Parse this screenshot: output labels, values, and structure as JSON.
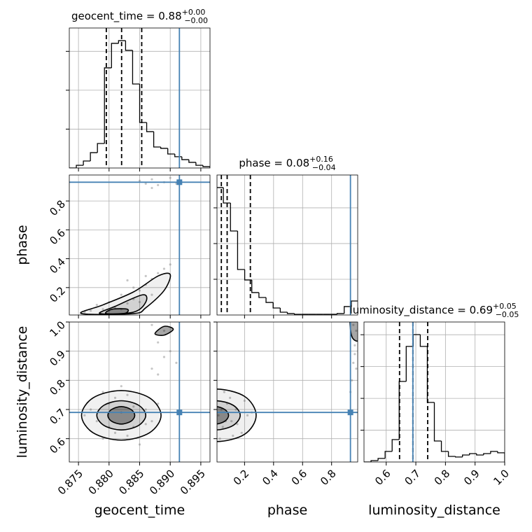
{
  "chart_data": [
    {
      "type": "histogram",
      "title": "geocent_time = 0.88",
      "title_sup": "+0.00",
      "title_sub": "−0.00",
      "color": "#000000",
      "truth_color": "#4682b4",
      "bins": [
        0.8735,
        0.87465,
        0.8758,
        0.87695,
        0.8781,
        0.87925,
        0.8804,
        0.88155,
        0.8827,
        0.88385,
        0.885,
        0.88615,
        0.8873,
        0.88845,
        0.8896,
        0.89075,
        0.8919,
        0.89305,
        0.8942,
        0.89535,
        0.8965
      ],
      "counts": [
        0,
        14,
        36,
        79,
        126,
        515,
        641,
        655,
        605,
        432,
        234,
        187,
        108,
        101,
        72,
        58,
        43,
        29,
        14,
        7
      ],
      "quantiles": [
        0.87955,
        0.88205,
        0.88534
      ],
      "truth": 0.8915,
      "xlim": [
        0.8735,
        0.8965
      ],
      "xticks": [
        0.875,
        {
          "value": 0.88,
          "label": "0.880"
        },
        0.885,
        {
          "value": 0.89,
          "label": "0.890"
        },
        0.895
      ],
      "ylim": [
        0,
        720
      ],
      "yticks": [
        200,
        400,
        600
      ],
      "grid": true
    },
    {
      "type": "scatter",
      "ylabel": "phase",
      "color": "#808080",
      "contour_color": "#000000",
      "truth_color": "#4682b4",
      "x": [
        0.879,
        0.88,
        0.881,
        0.882,
        0.878,
        0.883,
        0.884,
        0.882,
        0.885,
        0.886,
        0.887,
        0.888,
        0.886,
        0.889,
        0.884,
        0.88,
        0.877,
        0.876,
        0.885,
        0.887,
        0.89,
        0.883,
        0.886,
        0.887,
        0.889,
        0.89,
        0.888,
        0.885,
        0.891,
        0.887
      ],
      "y": [
        0.05,
        0.04,
        0.06,
        0.05,
        0.08,
        0.09,
        0.12,
        0.15,
        0.18,
        0.22,
        0.26,
        0.3,
        0.28,
        0.33,
        0.2,
        0.1,
        0.04,
        0.03,
        0.1,
        0.15,
        0.36,
        0.25,
        0.92,
        0.95,
        0.93,
        0.96,
        0.91,
        0.94,
        0.92,
        0.89
      ],
      "contours": [
        {
          "x": [
            0.8755,
            0.879,
            0.884,
            0.888,
            0.89,
            0.889,
            0.886,
            0.884
          ],
          "y": [
            0.02,
            0.08,
            0.17,
            0.28,
            0.29,
            0.18,
            0.06,
            0.02
          ]
        },
        {
          "x": [
            0.8785,
            0.881,
            0.8855,
            0.886,
            0.884
          ],
          "y": [
            0.02,
            0.07,
            0.15,
            0.1,
            0.03
          ]
        },
        {
          "x": [
            0.8795,
            0.8805,
            0.883,
            0.8825
          ],
          "y": [
            0.02,
            0.05,
            0.05,
            0.02
          ]
        }
      ],
      "truth": [
        0.8915,
        0.93
      ],
      "xlim": [
        0.8735,
        0.8965
      ],
      "xticks": [
        0.875,
        {
          "value": 0.88,
          "label": "0.880"
        },
        0.885,
        {
          "value": 0.89,
          "label": "0.890"
        },
        0.895
      ],
      "ylim": [
        0.01,
        0.98
      ],
      "yticks": [
        0.2,
        0.4,
        0.6,
        0.8
      ],
      "grid": true
    },
    {
      "type": "histogram",
      "title": "phase = 0.08",
      "title_sup": "+0.16",
      "title_sub": "−0.04",
      "color": "#000000",
      "truth_color": "#4682b4",
      "bins": [
        0.005,
        0.054,
        0.103,
        0.152,
        0.201,
        0.25,
        0.299,
        0.348,
        0.397,
        0.446,
        0.495,
        0.544,
        0.593,
        0.642,
        0.691,
        0.74,
        0.789,
        0.838,
        0.887,
        0.936,
        0.985
      ],
      "counts": [
        1784,
        1568,
        1176,
        637,
        490,
        314,
        245,
        176,
        98,
        39,
        20,
        10,
        10,
        10,
        10,
        10,
        10,
        20,
        118,
        196
      ],
      "quantiles": [
        0.04,
        0.08,
        0.24
      ],
      "truth": 0.93,
      "xlim": [
        0.01,
        0.98
      ],
      "xticks": [
        0.2,
        0.4,
        0.6,
        0.8
      ],
      "ylim": [
        0,
        1960
      ],
      "yticks": [
        500,
        1000,
        1500
      ],
      "grid": true
    },
    {
      "type": "scatter",
      "xlabel": "geocent_time",
      "ylabel": "luminosity_distance",
      "color": "#808080",
      "contour_color": "#000000",
      "truth_color": "#4682b4",
      "x": [
        0.878,
        0.88,
        0.881,
        0.883,
        0.884,
        0.886,
        0.879,
        0.877,
        0.882,
        0.885,
        0.887,
        0.876,
        0.88,
        0.884,
        0.888,
        0.881,
        0.883,
        0.879,
        0.886,
        0.882,
        0.887,
        0.889,
        0.888,
        0.89,
        0.889,
        0.891,
        0.887,
        0.888
      ],
      "y": [
        0.66,
        0.72,
        0.62,
        0.75,
        0.64,
        0.7,
        0.6,
        0.7,
        0.78,
        0.58,
        0.66,
        0.68,
        0.64,
        0.71,
        0.72,
        0.74,
        0.61,
        0.76,
        0.65,
        0.69,
        0.84,
        0.88,
        0.93,
        0.9,
        0.97,
        0.86,
        0.99,
        0.82
      ],
      "contours": [
        {
          "x": [
            0.8885,
            0.8866,
            0.882,
            0.8774,
            0.8755,
            0.8774,
            0.882,
            0.8866
          ],
          "y": [
            0.68,
            0.74,
            0.765,
            0.74,
            0.68,
            0.62,
            0.595,
            0.62
          ]
        },
        {
          "x": [
            0.886,
            0.8848,
            0.882,
            0.8792,
            0.878,
            0.8792,
            0.882,
            0.8848
          ],
          "y": [
            0.68,
            0.715,
            0.73,
            0.715,
            0.68,
            0.645,
            0.63,
            0.645
          ]
        },
        {
          "x": [
            0.8842,
            0.8836,
            0.882,
            0.8804,
            0.8798,
            0.8804,
            0.882,
            0.8836
          ],
          "y": [
            0.68,
            0.7,
            0.71,
            0.7,
            0.68,
            0.66,
            0.65,
            0.66
          ]
        },
        {
          "x": [
            0.8875,
            0.889,
            0.8905,
            0.889
          ],
          "y": [
            0.96,
            0.985,
            0.975,
            0.955
          ]
        }
      ],
      "truth": [
        0.8915,
        0.69
      ],
      "xlim": [
        0.8735,
        0.8965
      ],
      "xticks": [
        0.875,
        {
          "value": 0.88,
          "label": "0.880"
        },
        0.885,
        {
          "value": 0.89,
          "label": "0.890"
        },
        0.895
      ],
      "ylim": [
        0.52,
        1.0
      ],
      "yticks": [
        0.6,
        0.7,
        0.8,
        0.9,
        {
          "value": 1,
          "label": "1.0"
        }
      ],
      "grid": true
    },
    {
      "type": "scatter",
      "xlabel": "phase",
      "color": "#808080",
      "contour_color": "#000000",
      "truth_color": "#4682b4",
      "x": [
        0.02,
        0.05,
        0.08,
        0.11,
        0.14,
        0.18,
        0.22,
        0.03,
        0.06,
        0.1,
        0.15,
        0.25,
        0.04,
        0.12,
        0.2,
        0.07,
        0.94,
        0.95,
        0.96,
        0.97,
        0.93,
        0.95,
        0.97,
        0.96
      ],
      "y": [
        0.68,
        0.64,
        0.72,
        0.66,
        0.7,
        0.62,
        0.68,
        0.6,
        0.76,
        0.74,
        0.65,
        0.69,
        0.7,
        0.61,
        0.73,
        0.66,
        0.8,
        0.86,
        0.92,
        0.97,
        0.76,
        0.99,
        0.84,
        0.89
      ],
      "contours": [
        {
          "x": [
            0.28,
            0.2,
            0.0,
            -0.2,
            -0.28,
            -0.2,
            0.0,
            0.2
          ],
          "y": [
            0.68,
            0.745,
            0.77,
            0.745,
            0.68,
            0.615,
            0.59,
            0.615
          ]
        },
        {
          "x": [
            0.17,
            0.12,
            0.0,
            -0.12,
            -0.17,
            -0.12,
            0.0,
            0.12
          ],
          "y": [
            0.68,
            0.715,
            0.73,
            0.715,
            0.68,
            0.645,
            0.63,
            0.645
          ]
        },
        {
          "x": [
            0.09,
            0.064,
            0.0,
            -0.064,
            -0.09,
            -0.064,
            0.0,
            0.064
          ],
          "y": [
            0.68,
            0.7,
            0.71,
            0.7,
            0.68,
            0.66,
            0.65,
            0.66
          ]
        },
        {
          "x": [
            0.93,
            0.94,
            0.99,
            0.99
          ],
          "y": [
            1.02,
            0.95,
            0.94,
            1.02
          ]
        }
      ],
      "truth": [
        0.93,
        0.69
      ],
      "xlim": [
        0.01,
        0.98
      ],
      "xticks": [
        0.2,
        0.4,
        0.6,
        0.8
      ],
      "ylim": [
        0.52,
        1.0
      ],
      "yticks": [
        0.6,
        0.7,
        0.8,
        0.9,
        {
          "value": 1,
          "label": "1.0"
        }
      ],
      "grid": true
    },
    {
      "type": "histogram",
      "title": "luminosity_distance = 0.69",
      "title_sup": "+0.05",
      "title_sub": "−0.05",
      "xlabel": "luminosity_distance",
      "color": "#000000",
      "truth_color": "#4682b4",
      "bins": [
        0.525,
        0.54875,
        0.5725,
        0.59625,
        0.62,
        0.64375,
        0.6675,
        0.69125,
        0.715,
        0.73875,
        0.7625,
        0.78625,
        0.81,
        0.83375,
        0.8575,
        0.88125,
        0.905,
        0.92875,
        0.9525,
        0.97625,
        1.0
      ],
      "counts": [
        0,
        11,
        28,
        83,
        176,
        633,
        908,
        1001,
        908,
        468,
        165,
        83,
        44,
        39,
        55,
        66,
        55,
        66,
        83,
        72
      ],
      "quantiles": [
        0.645,
        0.69,
        0.74
      ],
      "truth": 0.69,
      "xlim": [
        0.525,
        1.0
      ],
      "xticks": [
        0.6,
        0.7,
        0.8,
        0.9,
        {
          "value": 1,
          "label": "1.0"
        }
      ],
      "ylim": [
        0,
        1100
      ],
      "yticks": [
        250,
        500,
        750,
        1000
      ],
      "grid": true
    }
  ]
}
